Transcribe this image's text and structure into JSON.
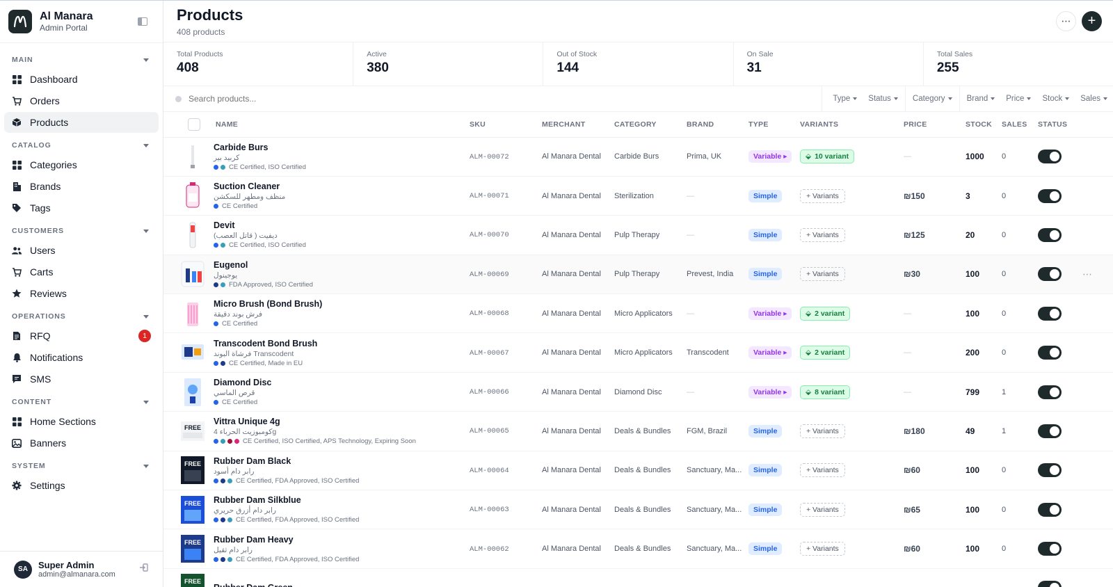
{
  "app": {
    "name": "Al Manara",
    "subtitle": "Admin Portal"
  },
  "sidebar": {
    "sections": [
      {
        "title": "MAIN",
        "items": [
          {
            "label": "Dashboard",
            "icon": "grid-icon"
          },
          {
            "label": "Orders",
            "icon": "cart-icon"
          },
          {
            "label": "Products",
            "icon": "box-icon",
            "active": true
          }
        ]
      },
      {
        "title": "CATALOG",
        "items": [
          {
            "label": "Categories",
            "icon": "grid-icon"
          },
          {
            "label": "Brands",
            "icon": "building-icon"
          },
          {
            "label": "Tags",
            "icon": "tag-icon"
          }
        ]
      },
      {
        "title": "CUSTOMERS",
        "items": [
          {
            "label": "Users",
            "icon": "users-icon"
          },
          {
            "label": "Carts",
            "icon": "cart-icon"
          },
          {
            "label": "Reviews",
            "icon": "star-icon"
          }
        ]
      },
      {
        "title": "OPERATIONS",
        "items": [
          {
            "label": "RFQ",
            "icon": "document-icon",
            "badge": "1"
          },
          {
            "label": "Notifications",
            "icon": "bell-icon"
          },
          {
            "label": "SMS",
            "icon": "message-icon"
          }
        ]
      },
      {
        "title": "CONTENT",
        "items": [
          {
            "label": "Home Sections",
            "icon": "grid-icon"
          },
          {
            "label": "Banners",
            "icon": "image-icon"
          }
        ]
      },
      {
        "title": "SYSTEM",
        "items": [
          {
            "label": "Settings",
            "icon": "gear-icon"
          }
        ]
      }
    ],
    "user": {
      "initials": "SA",
      "name": "Super Admin",
      "email": "admin@almanara.com"
    }
  },
  "header": {
    "title": "Products",
    "count": "408 products"
  },
  "stats": [
    {
      "label": "Total Products",
      "value": "408"
    },
    {
      "label": "Active",
      "value": "380"
    },
    {
      "label": "Out of Stock",
      "value": "144"
    },
    {
      "label": "On Sale",
      "value": "31"
    },
    {
      "label": "Total Sales",
      "value": "255"
    }
  ],
  "search": {
    "placeholder": "Search products..."
  },
  "filters": [
    "Type",
    "Status",
    "Category",
    "Brand",
    "Price",
    "Stock",
    "Sales"
  ],
  "columns": [
    "NAME",
    "SKU",
    "MERCHANT",
    "CATEGORY",
    "BRAND",
    "TYPE",
    "VARIANTS",
    "PRICE",
    "STOCK",
    "SALES",
    "STATUS"
  ],
  "dash": "—",
  "products": [
    {
      "name": "Carbide Burs",
      "arabic": "كربيد بير",
      "dots": [
        "#2563eb",
        "#3b9eb8"
      ],
      "certs": "CE Certified, ISO Certified",
      "sku": "ALM-00072",
      "merchant": "Al Manara Dental",
      "category": "Carbide Burs",
      "brand": "Prima, UK",
      "type": "Variable",
      "variants": "10 variant",
      "price": "",
      "stock": "1000",
      "sales": "0",
      "active": true
    },
    {
      "name": "Suction Cleaner",
      "arabic": "منظف ومطهر للسكشن",
      "dots": [
        "#2563eb"
      ],
      "certs": "CE Certified",
      "sku": "ALM-00071",
      "merchant": "Al Manara Dental",
      "category": "Sterilization",
      "brand": "",
      "type": "Simple",
      "variants": "",
      "price": "₪150",
      "stock": "3",
      "sales": "0",
      "active": true
    },
    {
      "name": "Devit",
      "arabic": "ديفيت ( قاتل العصب)",
      "dots": [
        "#2563eb",
        "#3b9eb8"
      ],
      "certs": "CE Certified, ISO Certified",
      "sku": "ALM-00070",
      "merchant": "Al Manara Dental",
      "category": "Pulp Therapy",
      "brand": "",
      "type": "Simple",
      "variants": "",
      "price": "₪125",
      "stock": "20",
      "sales": "0",
      "active": true
    },
    {
      "name": "Eugenol",
      "arabic": "يوجينول",
      "dots": [
        "#1e3a8a",
        "#3b9eb8"
      ],
      "certs": "FDA Approved, ISO Certified",
      "sku": "ALM-00069",
      "merchant": "Al Manara Dental",
      "category": "Pulp Therapy",
      "brand": "Prevest, India",
      "type": "Simple",
      "variants": "",
      "price": "₪30",
      "stock": "100",
      "sales": "0",
      "active": true
    },
    {
      "name": "Micro Brush (Bond Brush)",
      "arabic": "فرش بوند دقيقة",
      "dots": [
        "#2563eb"
      ],
      "certs": "CE Certified",
      "sku": "ALM-00068",
      "merchant": "Al Manara Dental",
      "category": "Micro Applicators",
      "brand": "",
      "type": "Variable",
      "variants": "2 variant",
      "price": "",
      "stock": "100",
      "sales": "0",
      "active": true
    },
    {
      "name": "Transcodent Bond Brush",
      "arabic": "فرشاة البوند Transcodent",
      "dots": [
        "#2563eb",
        "#1e3a8a"
      ],
      "certs": "CE Certified, Made in EU",
      "sku": "ALM-00067",
      "merchant": "Al Manara Dental",
      "category": "Micro Applicators",
      "brand": "Transcodent",
      "type": "Variable",
      "variants": "2 variant",
      "price": "",
      "stock": "200",
      "sales": "0",
      "active": true
    },
    {
      "name": "Diamond Disc",
      "arabic": "قرص الماسي",
      "dots": [
        "#2563eb"
      ],
      "certs": "CE Certified",
      "sku": "ALM-00066",
      "merchant": "Al Manara Dental",
      "category": "Diamond Disc",
      "brand": "",
      "type": "Variable",
      "variants": "8 variant",
      "price": "",
      "stock": "799",
      "sales": "1",
      "active": true
    },
    {
      "name": "Vittra Unique 4g",
      "arabic": "كومبوزيت الحرباء 4g",
      "dots": [
        "#2563eb",
        "#3b9eb8",
        "#9f1239",
        "#db2777"
      ],
      "certs": "CE Certified, ISO Certified, APS Technology, Expiring Soon",
      "sku": "ALM-00065",
      "merchant": "Al Manara Dental",
      "category": "Deals & Bundles",
      "brand": "FGM, Brazil",
      "type": "Simple",
      "variants": "",
      "price": "₪180",
      "stock": "49",
      "sales": "1",
      "active": true
    },
    {
      "name": "Rubber Dam Black",
      "arabic": "رابر دام أسود",
      "dots": [
        "#2563eb",
        "#1e3a8a",
        "#3b9eb8"
      ],
      "certs": "CE Certified, FDA Approved, ISO Certified",
      "sku": "ALM-00064",
      "merchant": "Al Manara Dental",
      "category": "Deals & Bundles",
      "brand": "Sanctuary, Ma...",
      "type": "Simple",
      "variants": "",
      "price": "₪60",
      "stock": "100",
      "sales": "0",
      "active": true
    },
    {
      "name": "Rubber Dam Silkblue",
      "arabic": "رابر دام أزرق حريري",
      "dots": [
        "#2563eb",
        "#1e3a8a",
        "#3b9eb8"
      ],
      "certs": "CE Certified, FDA Approved, ISO Certified",
      "sku": "ALM-00063",
      "merchant": "Al Manara Dental",
      "category": "Deals & Bundles",
      "brand": "Sanctuary, Ma...",
      "type": "Simple",
      "variants": "",
      "price": "₪65",
      "stock": "100",
      "sales": "0",
      "active": true
    },
    {
      "name": "Rubber Dam Heavy",
      "arabic": "رابر دام ثقيل",
      "dots": [
        "#2563eb",
        "#1e3a8a",
        "#3b9eb8"
      ],
      "certs": "CE Certified, FDA Approved, ISO Certified",
      "sku": "ALM-00062",
      "merchant": "Al Manara Dental",
      "category": "Deals & Bundles",
      "brand": "Sanctuary, Ma...",
      "type": "Simple",
      "variants": "",
      "price": "₪60",
      "stock": "100",
      "sales": "0",
      "active": true
    },
    {
      "name": "Rubber Dam Green",
      "arabic": "",
      "dots": [],
      "certs": "",
      "sku": "",
      "merchant": "",
      "category": "",
      "brand": "",
      "type": "",
      "variants": "",
      "price": "",
      "stock": "",
      "sales": "",
      "active": true
    }
  ],
  "buttons": {
    "variants_label": "+ Variants",
    "more": "⋯",
    "add": "+"
  },
  "colors": {
    "accent": "#1f2a2c",
    "variable": "#9333ea",
    "simple": "#2563eb",
    "variant_tag": "#15803d",
    "badge": "#dc2626"
  }
}
